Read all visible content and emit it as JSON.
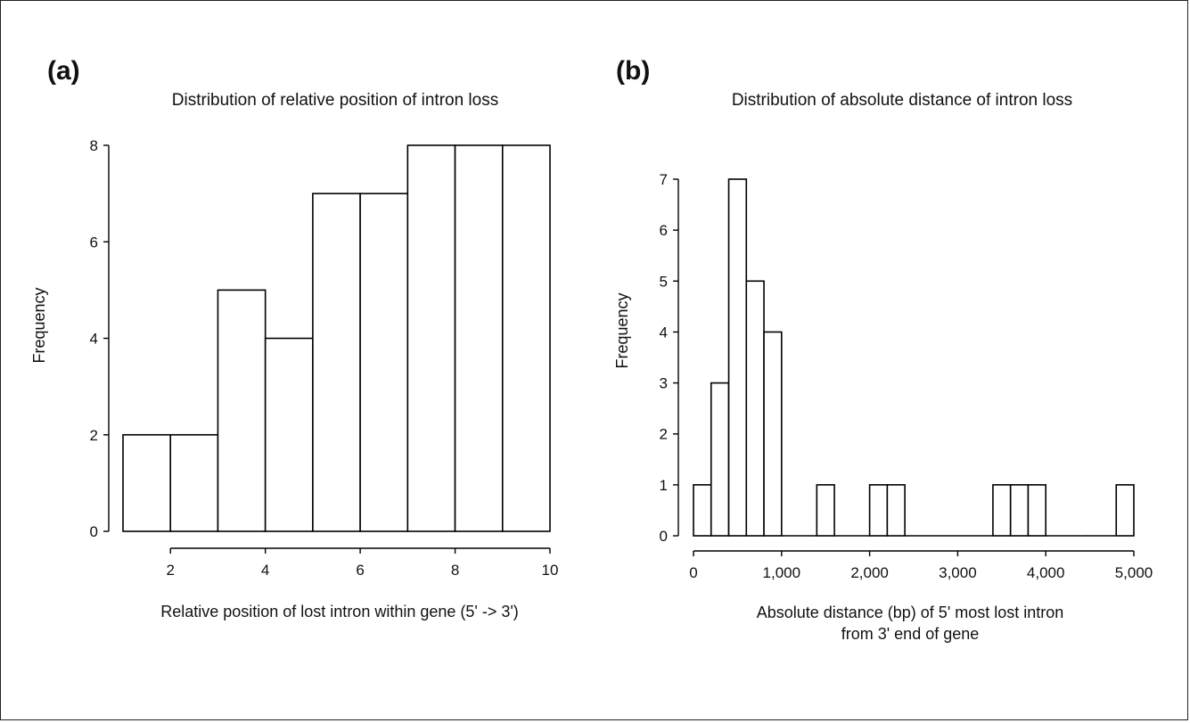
{
  "chart_data": [
    {
      "type": "bar",
      "panel_label": "(a)",
      "title": "Distribution of relative position of intron loss",
      "xlabel": "Relative position of lost intron within gene (5' -> 3')",
      "xlabel_line2": "",
      "ylabel": "Frequency",
      "bin_edges": [
        1,
        2,
        3,
        4,
        5,
        6,
        7,
        8,
        9,
        10
      ],
      "values": [
        2,
        2,
        5,
        4,
        7,
        7,
        8,
        8,
        8
      ],
      "xlim": [
        1,
        10
      ],
      "ylim": [
        0,
        8
      ],
      "xticks": [
        2,
        4,
        6,
        8,
        10
      ],
      "xtick_labels": [
        "2",
        "4",
        "6",
        "8",
        "10"
      ],
      "yticks": [
        0,
        2,
        4,
        6,
        8
      ],
      "ytick_labels": [
        "0",
        "2",
        "4",
        "6",
        "8"
      ],
      "grid": false
    },
    {
      "type": "bar",
      "panel_label": "(b)",
      "title": "Distribution of absolute distance of intron loss",
      "xlabel": "Absolute distance (bp) of 5' most lost intron",
      "xlabel_line2": "from 3' end of gene",
      "ylabel": "Frequency",
      "bin_edges": [
        0,
        200,
        400,
        600,
        800,
        1000,
        1200,
        1400,
        1600,
        1800,
        2000,
        2200,
        2400,
        2600,
        2800,
        3000,
        3200,
        3400,
        3600,
        3800,
        4000,
        4200,
        4400,
        4600,
        4800,
        5000
      ],
      "values": [
        1,
        3,
        7,
        5,
        4,
        0,
        0,
        1,
        0,
        0,
        1,
        1,
        0,
        0,
        0,
        0,
        0,
        1,
        1,
        1,
        0,
        0,
        0,
        0,
        1
      ],
      "xlim": [
        0,
        5000
      ],
      "ylim": [
        0,
        7
      ],
      "xticks": [
        0,
        1000,
        2000,
        3000,
        4000,
        5000
      ],
      "xtick_labels": [
        "0",
        "1,000",
        "2,000",
        "3,000",
        "4,000",
        "5,000"
      ],
      "yticks": [
        0,
        1,
        2,
        3,
        4,
        5,
        6,
        7
      ],
      "ytick_labels": [
        "0",
        "1",
        "2",
        "3",
        "4",
        "5",
        "6",
        "7"
      ],
      "grid": false
    }
  ]
}
